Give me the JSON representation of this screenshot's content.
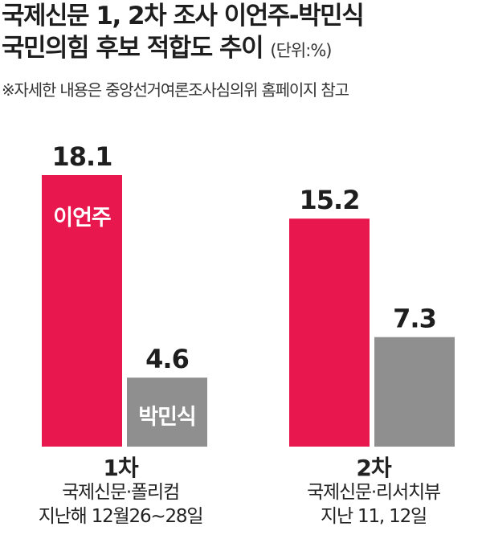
{
  "header": {
    "title_line1": "국제신문 1, 2차 조사 이언주-박민식",
    "title_line2": "국민의힘 후보 적합도 추이",
    "unit": "(단위:%)",
    "note": "※자세한 내용은 중앙선거여론조사심의위 홈페이지 참고"
  },
  "chart_data": {
    "type": "bar",
    "categories": [
      "1차",
      "2차"
    ],
    "series": [
      {
        "name": "이언주",
        "values": [
          18.1,
          15.2
        ],
        "color": "#e8174d"
      },
      {
        "name": "박민식",
        "values": [
          4.6,
          7.3
        ],
        "color": "#8f8f8f"
      }
    ],
    "value_labels": [
      [
        "18.1",
        "15.2"
      ],
      [
        "4.6",
        "7.3"
      ]
    ],
    "ylim": [
      0,
      19
    ],
    "xlabel": "",
    "ylabel": ""
  },
  "groups": [
    {
      "round": "1차",
      "pollster": "국제신문·폴리컴",
      "period": "지난해 12월26~28일"
    },
    {
      "round": "2차",
      "pollster": "국제신문·리서치뷰",
      "period": "지난 11, 12일"
    }
  ]
}
